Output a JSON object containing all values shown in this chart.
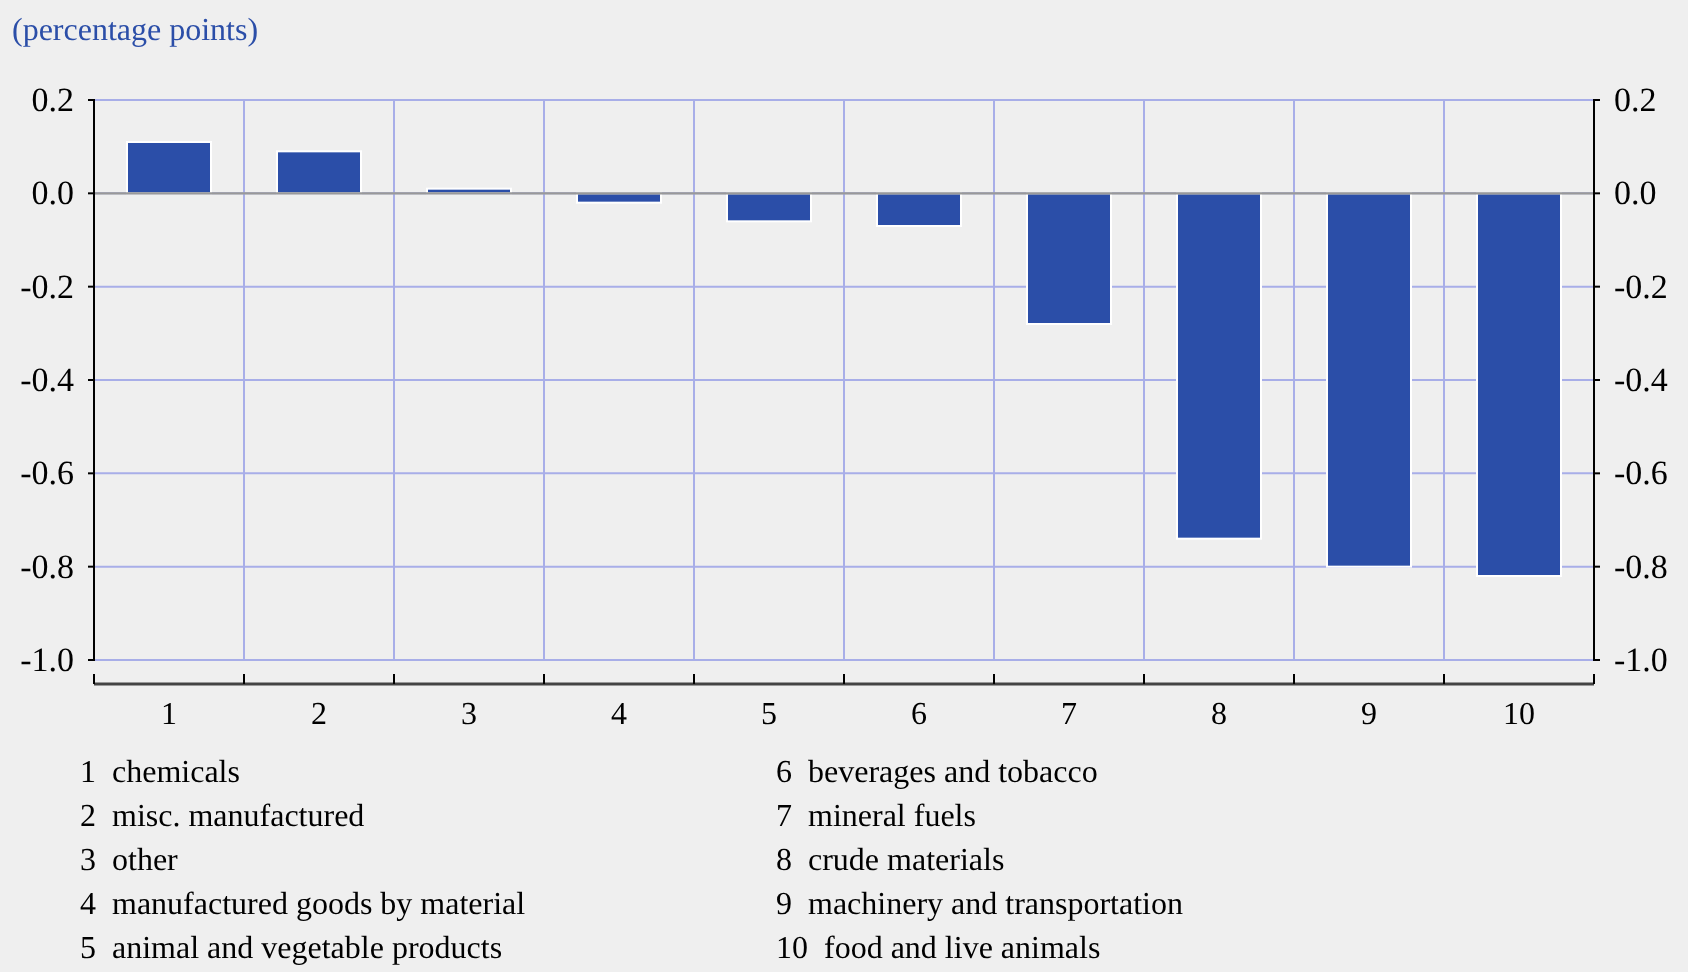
{
  "chart_data": {
    "type": "bar",
    "ylabel": "(percentage points)",
    "categories": [
      "1",
      "2",
      "3",
      "4",
      "5",
      "6",
      "7",
      "8",
      "9",
      "10"
    ],
    "values": [
      0.11,
      0.09,
      0.01,
      -0.02,
      -0.06,
      -0.07,
      -0.28,
      -0.74,
      -0.8,
      -0.82
    ],
    "color": "#2b4ea8",
    "ylim": [
      -1.0,
      0.2
    ],
    "yticks": [
      {
        "value": 0.2,
        "label": "0.2"
      },
      {
        "value": 0.0,
        "label": "0.0"
      },
      {
        "value": -0.2,
        "label": "-0.2"
      },
      {
        "value": -0.4,
        "label": "-0.4"
      },
      {
        "value": -0.6,
        "label": "-0.6"
      },
      {
        "value": -0.8,
        "label": "-0.8"
      },
      {
        "value": -1.0,
        "label": "-1.0"
      }
    ],
    "y2lim": [
      -1.0,
      0.2
    ],
    "y2ticks": [
      {
        "value": 0.2,
        "label": "0.2"
      },
      {
        "value": 0.0,
        "label": "0.0"
      },
      {
        "value": -0.2,
        "label": "-0.2"
      },
      {
        "value": -0.4,
        "label": "-0.4"
      },
      {
        "value": -0.6,
        "label": "-0.6"
      },
      {
        "value": -0.8,
        "label": "-0.8"
      },
      {
        "value": -1.0,
        "label": "-1.0"
      }
    ],
    "grid": true,
    "annotations": [
      "1  chemicals",
      "2  misc. manufactured",
      "3  other",
      "4  manufactured goods by material",
      "5  animal and vegetable products",
      "6  beverages and tobacco",
      "7  mineral fuels",
      "8  crude materials",
      "9  machinery and transportation",
      "10  food and live animals"
    ]
  }
}
